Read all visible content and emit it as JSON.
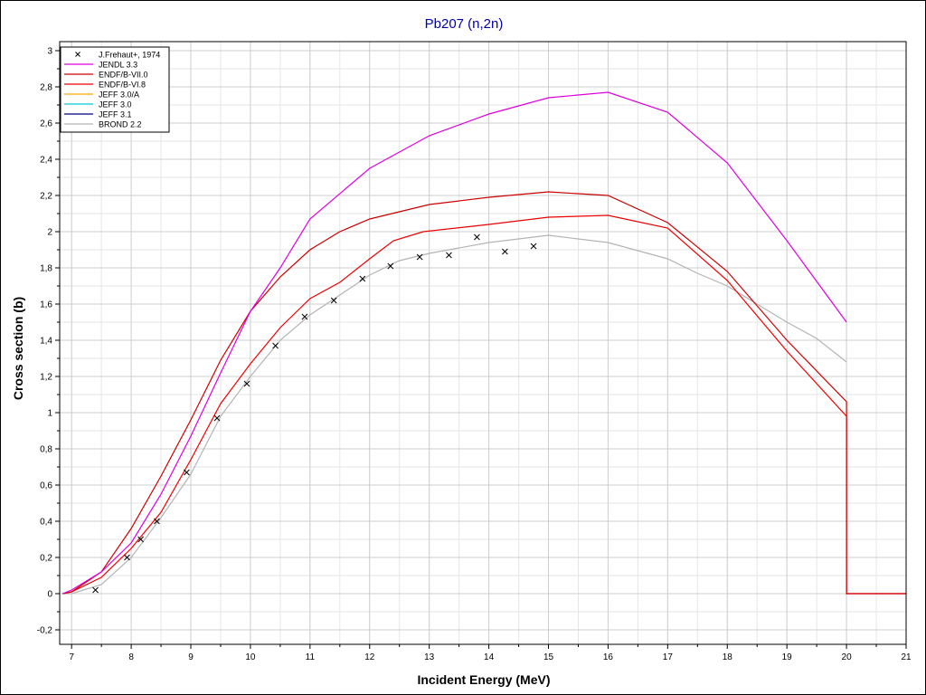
{
  "chart_data": {
    "type": "line",
    "title": "Pb207 (n,2n)",
    "xlabel": "Incident Energy (MeV)",
    "ylabel": "Cross section (b)",
    "xlim": [
      6.8,
      21
    ],
    "ylim": [
      -0.28,
      3.05
    ],
    "x_ticks": [
      7,
      8,
      9,
      10,
      11,
      12,
      13,
      14,
      15,
      16,
      17,
      18,
      19,
      20,
      21
    ],
    "x_tick_labels": [
      "7",
      "8",
      "9",
      "10",
      "11",
      "12",
      "13",
      "14",
      "15",
      "16",
      "17",
      "18",
      "19",
      "20",
      "21"
    ],
    "y_ticks": [
      -0.2,
      0,
      0.2,
      0.4,
      0.6,
      0.8,
      1,
      1.2,
      1.4,
      1.6,
      1.8,
      2,
      2.2,
      2.4,
      2.6,
      2.8,
      3
    ],
    "y_tick_labels": [
      "-0,2",
      "0",
      "0,2",
      "0,4",
      "0,6",
      "0,8",
      "1",
      "1,2",
      "1,4",
      "1,6",
      "1,8",
      "2",
      "2,2",
      "2,4",
      "2,6",
      "2,8",
      "3"
    ],
    "grid": true,
    "legend_position": "top-left",
    "colors": {
      "title": "#0000aa",
      "grid": "#d8d8d8",
      "axis": "#000000"
    },
    "series": [
      {
        "name": "J.Frehaut+, 1974",
        "kind": "scatter",
        "marker": "x",
        "color": "#000000",
        "x": [
          7.4,
          7.93,
          8.16,
          8.43,
          8.93,
          9.44,
          9.94,
          10.42,
          10.91,
          11.4,
          11.88,
          12.35,
          12.84,
          13.33,
          13.8,
          14.27,
          14.75
        ],
        "y": [
          0.02,
          0.2,
          0.3,
          0.4,
          0.67,
          0.97,
          1.16,
          1.37,
          1.53,
          1.62,
          1.74,
          1.81,
          1.86,
          1.87,
          1.97,
          1.89,
          1.92
        ]
      },
      {
        "name": "JENDL 3.3",
        "kind": "line",
        "color": "#dd00dd",
        "x": [
          6.85,
          7.0,
          7.5,
          8.0,
          8.5,
          9.0,
          9.5,
          10.0,
          10.5,
          11.0,
          12.0,
          13.0,
          14.0,
          15.0,
          16.0,
          17.0,
          18.0,
          19.0,
          20.0
        ],
        "y": [
          0.0,
          0.02,
          0.12,
          0.28,
          0.55,
          0.87,
          1.22,
          1.56,
          1.8,
          2.07,
          2.35,
          2.53,
          2.65,
          2.74,
          2.77,
          2.66,
          2.38,
          1.95,
          1.5
        ]
      },
      {
        "name": "ENDF/B-VII.0",
        "kind": "line",
        "color": "#cc0000",
        "x": [
          6.85,
          7.0,
          7.5,
          8.0,
          8.5,
          9.0,
          9.5,
          10.0,
          10.5,
          11.0,
          11.5,
          12.0,
          12.5,
          13.0,
          14.0,
          15.0,
          16.0,
          17.0,
          18.0,
          19.0,
          20.0,
          20.0,
          21.0
        ],
        "y": [
          0.0,
          0.01,
          0.12,
          0.36,
          0.65,
          0.96,
          1.29,
          1.56,
          1.75,
          1.9,
          2.0,
          2.07,
          2.11,
          2.15,
          2.19,
          2.22,
          2.2,
          2.05,
          1.78,
          1.4,
          1.06,
          0.0,
          0.0
        ]
      },
      {
        "name": "ENDF/B-VI.8",
        "kind": "line",
        "color": "#ee0000",
        "x": [
          6.85,
          7.0,
          7.5,
          8.0,
          8.5,
          9.0,
          9.5,
          10.0,
          10.5,
          11.0,
          11.5,
          12.0,
          12.4,
          12.9,
          14.0,
          15.0,
          16.0,
          17.0,
          18.0,
          19.0,
          20.0,
          20.0,
          21.0
        ],
        "y": [
          0.0,
          0.01,
          0.09,
          0.25,
          0.45,
          0.74,
          1.05,
          1.27,
          1.47,
          1.63,
          1.72,
          1.85,
          1.95,
          2.0,
          2.04,
          2.08,
          2.09,
          2.02,
          1.73,
          1.34,
          0.98,
          0.0,
          0.0
        ]
      },
      {
        "name": "JEFF 3.0/A",
        "kind": "line",
        "color": "#ffa500",
        "x": [],
        "y": []
      },
      {
        "name": "JEFF 3.0",
        "kind": "line",
        "color": "#00ccdd",
        "x": [],
        "y": []
      },
      {
        "name": "JEFF 3.1",
        "kind": "line",
        "color": "#000080",
        "x": [],
        "y": []
      },
      {
        "name": "BROND 2.2",
        "kind": "line",
        "color": "#b4b4b4",
        "x": [
          6.85,
          7.0,
          7.5,
          8.0,
          8.5,
          9.0,
          9.5,
          10.0,
          10.5,
          11.0,
          11.5,
          12.0,
          12.5,
          13.0,
          13.5,
          14.0,
          15.0,
          16.0,
          17.0,
          17.5,
          18.0,
          18.5,
          19.0,
          19.5,
          20.0
        ],
        "y": [
          0.0,
          0.0,
          0.05,
          0.2,
          0.42,
          0.66,
          0.98,
          1.2,
          1.4,
          1.54,
          1.65,
          1.76,
          1.84,
          1.88,
          1.91,
          1.94,
          1.98,
          1.94,
          1.85,
          1.77,
          1.7,
          1.6,
          1.5,
          1.41,
          1.28
        ]
      }
    ]
  }
}
